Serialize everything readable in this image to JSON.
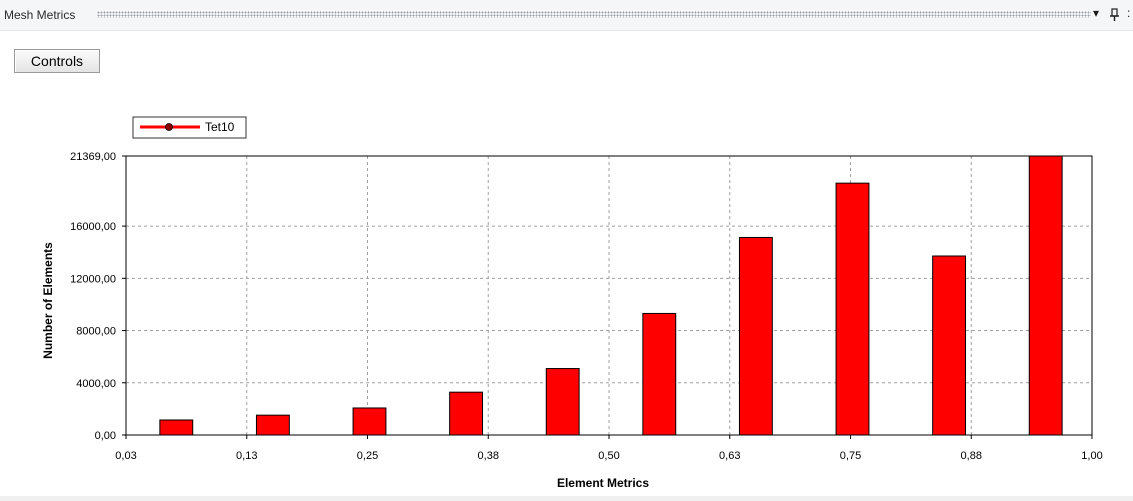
{
  "panel": {
    "title": "Mesh Metrics",
    "dropdown_icon": "chevron-down-icon",
    "pin_icon": "pin-icon"
  },
  "controls_label": "Controls",
  "colors": {
    "bar": "#ff0000",
    "bar_stroke": "#000000",
    "grid": "#a0a0a0"
  },
  "chart_data": {
    "type": "bar",
    "title": "",
    "xlabel": "Element Metrics",
    "ylabel": "Number of Elements",
    "xlim": [
      0.03,
      1.0
    ],
    "ylim": [
      0,
      21369
    ],
    "x_ticks": [
      "0,03",
      "0,13",
      "0,25",
      "0,38",
      "0,50",
      "0,63",
      "0,75",
      "0,88",
      "1,00"
    ],
    "y_ticks": [
      {
        "value": 0,
        "label": "0,00"
      },
      {
        "value": 4000,
        "label": "4000,00"
      },
      {
        "value": 8000,
        "label": "8000,00"
      },
      {
        "value": 12000,
        "label": "12000,00"
      },
      {
        "value": 16000,
        "label": "16000,00"
      },
      {
        "value": 21369,
        "label": "21369,00"
      }
    ],
    "grid": true,
    "legend_position": "top-left",
    "series": [
      {
        "name": "Tet10",
        "bins": [
          {
            "x0": 0.064,
            "x1": 0.097,
            "value": 1150
          },
          {
            "x0": 0.161,
            "x1": 0.194,
            "value": 1520
          },
          {
            "x0": 0.258,
            "x1": 0.291,
            "value": 2070
          },
          {
            "x0": 0.355,
            "x1": 0.388,
            "value": 3280
          },
          {
            "x0": 0.452,
            "x1": 0.485,
            "value": 5090
          },
          {
            "x0": 0.549,
            "x1": 0.582,
            "value": 9310
          },
          {
            "x0": 0.646,
            "x1": 0.679,
            "value": 15130
          },
          {
            "x0": 0.743,
            "x1": 0.776,
            "value": 19290
          },
          {
            "x0": 0.84,
            "x1": 0.873,
            "value": 13710
          },
          {
            "x0": 0.937,
            "x1": 0.97,
            "value": 21369
          }
        ]
      }
    ]
  }
}
